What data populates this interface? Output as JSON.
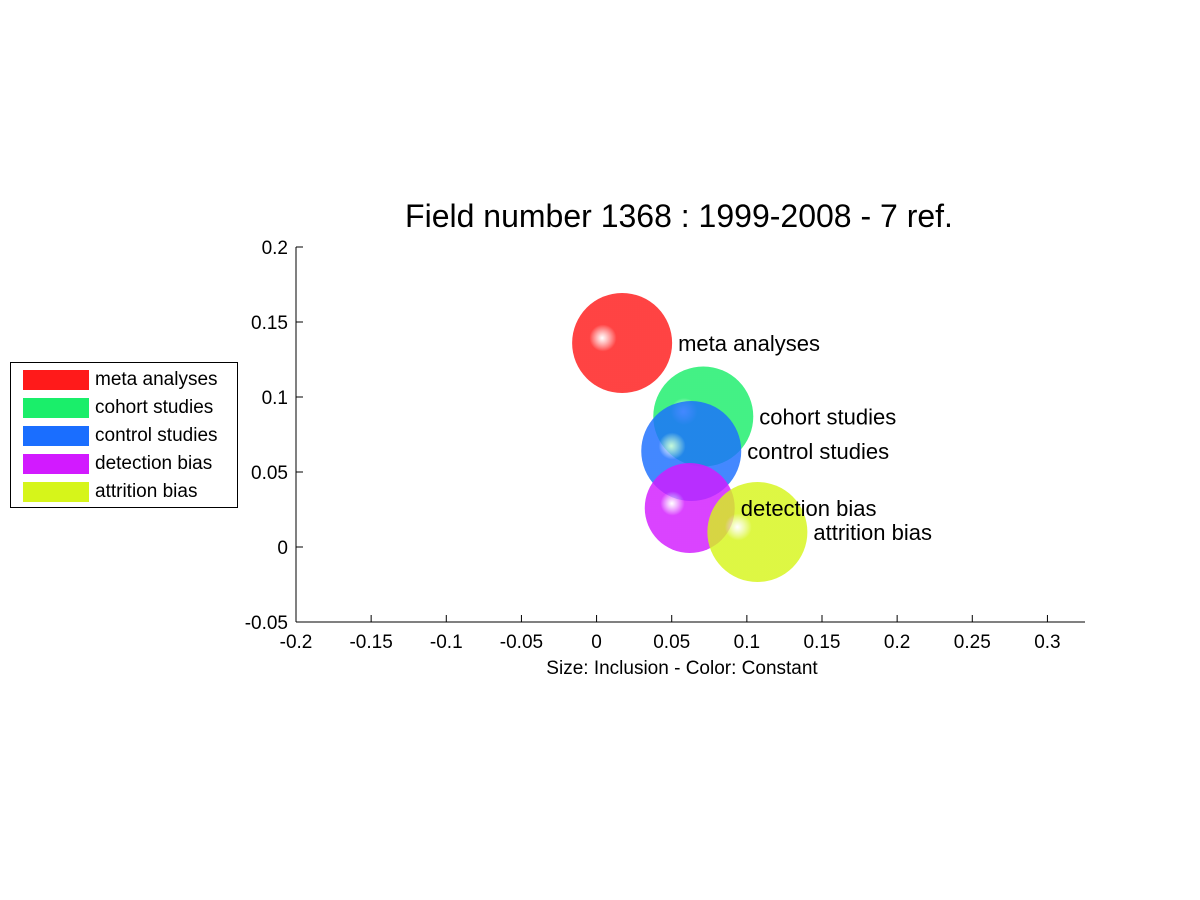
{
  "chart_data": {
    "type": "scatter",
    "title": "Field number 1368 : 1999-2008  - 7 ref.",
    "xlabel": "Size: Inclusion - Color: Constant",
    "ylabel": "",
    "xlim": [
      -0.2,
      0.325
    ],
    "ylim": [
      -0.05,
      0.2
    ],
    "xticks": [
      "-0.2",
      "-0.15",
      "-0.1",
      "-0.05",
      "0",
      "0.05",
      "0.1",
      "0.15",
      "0.2",
      "0.25",
      "0.3"
    ],
    "yticks": [
      "-0.05",
      "0",
      "0.05",
      "0.1",
      "0.15",
      "0.2"
    ],
    "grid": false,
    "legend_position": "left",
    "series": [
      {
        "name": "meta analyses",
        "x": 0.017,
        "y": 0.136,
        "size": 1.0,
        "color": "#ff1a1a"
      },
      {
        "name": "cohort studies",
        "x": 0.071,
        "y": 0.087,
        "size": 1.0,
        "color": "#1aee6a"
      },
      {
        "name": "control studies",
        "x": 0.063,
        "y": 0.064,
        "size": 1.0,
        "color": "#1a6eff"
      },
      {
        "name": "detection bias",
        "x": 0.062,
        "y": 0.026,
        "size": 0.9,
        "color": "#d21aff"
      },
      {
        "name": "attrition bias",
        "x": 0.107,
        "y": 0.01,
        "size": 1.0,
        "color": "#d6f51a"
      }
    ]
  }
}
